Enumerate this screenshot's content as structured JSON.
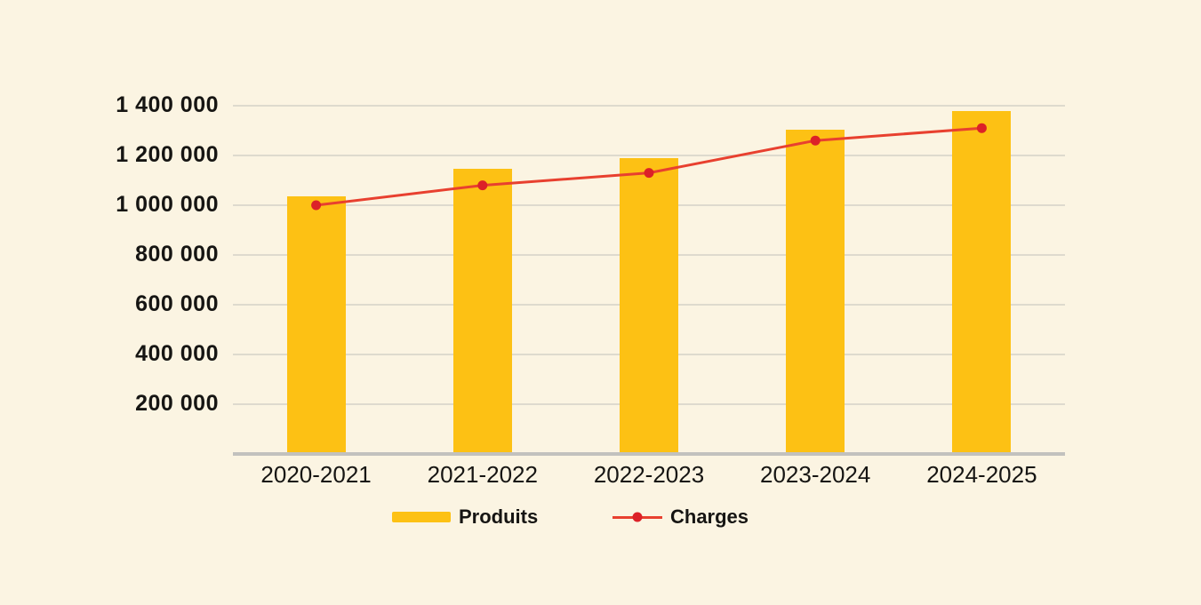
{
  "chart_data": {
    "type": "bar",
    "subtype": "bar-and-line-combo",
    "title": "",
    "xlabel": "",
    "ylabel": "",
    "categories": [
      "2020-2021",
      "2021-2022",
      "2022-2023",
      "2023-2024",
      "2024-2025"
    ],
    "series": [
      {
        "name": "Produits",
        "type": "bar",
        "color": "#FDC114",
        "values": [
          1035000,
          1145000,
          1190000,
          1305000,
          1380000
        ]
      },
      {
        "name": "Charges",
        "type": "line",
        "color": "#E8402F",
        "dot_color": "#DC2128",
        "values": [
          1000000,
          1080000,
          1130000,
          1260000,
          1310000
        ]
      }
    ],
    "yticks": [
      {
        "value": 200000,
        "label": "200 000"
      },
      {
        "value": 400000,
        "label": "400 000"
      },
      {
        "value": 600000,
        "label": "600 000"
      },
      {
        "value": 800000,
        "label": "800 000"
      },
      {
        "value": 1000000,
        "label": "1 000 000"
      },
      {
        "value": 1200000,
        "label": "1 200 000"
      },
      {
        "value": 1400000,
        "label": "1 400 000"
      }
    ],
    "ylim": [
      0,
      1400000
    ],
    "grid": "horizontal",
    "legend_position": "bottom"
  },
  "colors": {
    "background": "#FBF4E2",
    "bar": "#FDC114",
    "line": "#E8402F",
    "dot": "#DC2128",
    "gridline": "#DEDACE",
    "axis_baseline": "#C2C1BE",
    "text": "#161513"
  }
}
